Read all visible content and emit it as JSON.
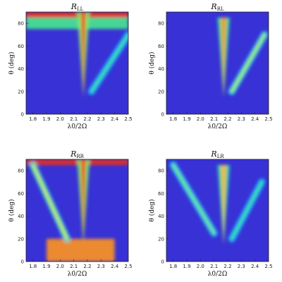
{
  "chart_data": [
    {
      "type": "heatmap",
      "title": "R",
      "title_subscript": "LL",
      "xlabel": "λ0/2Ω",
      "ylabel": "θ (deg)",
      "xlim": [
        1.75,
        2.5
      ],
      "ylim": [
        0,
        90
      ],
      "xticks": [
        "1.8",
        "1.9",
        "2.0",
        "2.1",
        "2.2",
        "2.3",
        "2.4",
        "2.5"
      ],
      "yticks": [
        "0",
        "20",
        "40",
        "60",
        "80"
      ],
      "colormap": [
        "#5a1fa8",
        "#2a39e8",
        "#17b7ff",
        "#2ee6a0",
        "#c9f02e",
        "#ffd021",
        "#ff6a1a",
        "#e0141a"
      ],
      "features": [
        {
          "kind": "band",
          "x_range": [
            1.75,
            2.5
          ],
          "y_range": [
            85,
            90
          ],
          "intensity": 0.95
        },
        {
          "kind": "band",
          "x_range": [
            1.75,
            2.5
          ],
          "y_range": [
            75,
            85
          ],
          "intensity": 0.45
        },
        {
          "kind": "ridge",
          "x": 2.17,
          "y_range": [
            15,
            90
          ],
          "intensity": 0.9
        },
        {
          "kind": "ridge_line",
          "from": [
            2.23,
            20
          ],
          "to": [
            2.5,
            70
          ],
          "intensity": 0.45
        }
      ]
    },
    {
      "type": "heatmap",
      "title": "R",
      "title_subscript": "RL",
      "xlabel": "λ0/2Ω",
      "ylabel": "θ (deg)",
      "xlim": [
        1.75,
        2.5
      ],
      "ylim": [
        0,
        90
      ],
      "xticks": [
        "1.8",
        "1.9",
        "2.0",
        "2.1",
        "2.2",
        "2.3",
        "2.4",
        "2.5"
      ],
      "yticks": [
        "0",
        "20",
        "40",
        "60",
        "80"
      ],
      "colormap": [
        "#5a1fa8",
        "#2a39e8",
        "#17b7ff",
        "#2ee6a0",
        "#c9f02e",
        "#ffd021",
        "#ff6a1a",
        "#e0141a"
      ],
      "features": [
        {
          "kind": "ridge",
          "x": 2.17,
          "y_range": [
            15,
            85
          ],
          "intensity": 0.8
        },
        {
          "kind": "ridge_line",
          "from": [
            2.23,
            20
          ],
          "to": [
            2.47,
            70
          ],
          "intensity": 0.55
        }
      ]
    },
    {
      "type": "heatmap",
      "title": "R",
      "title_subscript": "RR",
      "xlabel": "λ0/2Ω",
      "ylabel": "θ (deg)",
      "xlim": [
        1.75,
        2.5
      ],
      "ylim": [
        0,
        90
      ],
      "xticks": [
        "1.8",
        "1.9",
        "2.0",
        "2.1",
        "2.2",
        "2.3",
        "2.4",
        "2.5"
      ],
      "yticks": [
        "0",
        "20",
        "40",
        "60",
        "80"
      ],
      "colormap": [
        "#5a1fa8",
        "#2a39e8",
        "#17b7ff",
        "#2ee6a0",
        "#c9f02e",
        "#ffd021",
        "#ff6a1a",
        "#e0141a"
      ],
      "features": [
        {
          "kind": "band",
          "x_range": [
            1.75,
            2.5
          ],
          "y_range": [
            85,
            90
          ],
          "intensity": 0.95
        },
        {
          "kind": "region",
          "x_range": [
            1.9,
            2.4
          ],
          "y_range": [
            0,
            20
          ],
          "intensity": 0.8
        },
        {
          "kind": "ridge",
          "x": 2.17,
          "y_range": [
            15,
            90
          ],
          "intensity": 0.9
        },
        {
          "kind": "ridge_line",
          "from": [
            1.8,
            85
          ],
          "to": [
            2.05,
            20
          ],
          "intensity": 0.6
        }
      ]
    },
    {
      "type": "heatmap",
      "title": "R",
      "title_subscript": "LR",
      "xlabel": "λ0/2Ω",
      "ylabel": "θ (deg)",
      "xlim": [
        1.75,
        2.5
      ],
      "ylim": [
        0,
        90
      ],
      "xticks": [
        "1.8",
        "1.9",
        "2.0",
        "2.1",
        "2.2",
        "2.3",
        "2.4",
        "2.5"
      ],
      "yticks": [
        "0",
        "20",
        "40",
        "60",
        "80"
      ],
      "colormap": [
        "#5a1fa8",
        "#2a39e8",
        "#17b7ff",
        "#2ee6a0",
        "#c9f02e",
        "#ffd021",
        "#ff6a1a",
        "#e0141a"
      ],
      "features": [
        {
          "kind": "ridge",
          "x": 2.17,
          "y_range": [
            15,
            85
          ],
          "intensity": 0.75
        },
        {
          "kind": "ridge_line",
          "from": [
            1.8,
            85
          ],
          "to": [
            2.1,
            25
          ],
          "intensity": 0.5
        },
        {
          "kind": "ridge_line",
          "from": [
            2.23,
            20
          ],
          "to": [
            2.45,
            70
          ],
          "intensity": 0.45
        }
      ]
    }
  ]
}
